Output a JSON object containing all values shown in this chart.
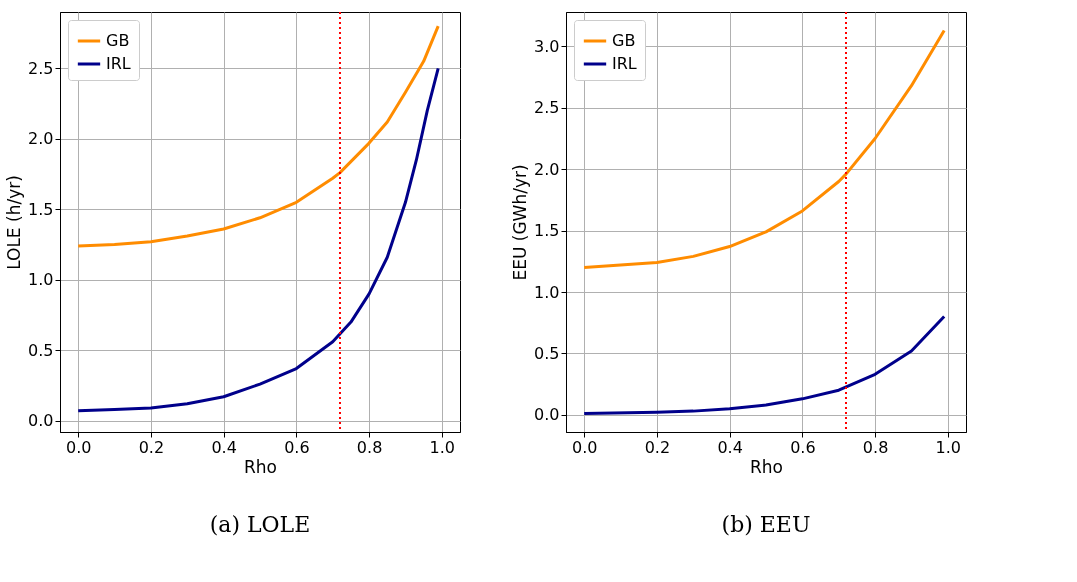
{
  "chart_data": [
    {
      "type": "line",
      "title": "(a) LOLE",
      "xlabel": "Rho",
      "ylabel": "LOLE (h/yr)",
      "xlim": [
        -0.05,
        1.05
      ],
      "ylim": [
        -0.08,
        2.9
      ],
      "xticks": [
        {
          "value": 0,
          "label": "0.0"
        },
        {
          "value": 0.2,
          "label": "0.2"
        },
        {
          "value": 0.4,
          "label": "0.4"
        },
        {
          "value": 0.6,
          "label": "0.6"
        },
        {
          "value": 0.8,
          "label": "0.8"
        },
        {
          "value": 1,
          "label": "1.0"
        }
      ],
      "yticks": [
        {
          "value": 0,
          "label": "0.0"
        },
        {
          "value": 0.5,
          "label": "0.5"
        },
        {
          "value": 1,
          "label": "1.0"
        },
        {
          "value": 1.5,
          "label": "1.5"
        },
        {
          "value": 2,
          "label": "2.0"
        },
        {
          "value": 2.5,
          "label": "2.5"
        }
      ],
      "grid": true,
      "legend": "top left",
      "marker": "none",
      "line_style": "solid",
      "ref_lines": [
        {
          "axis": "x",
          "value": 0.72,
          "color": "#ff0000",
          "line_style": "dotted"
        }
      ],
      "series": [
        {
          "name": "GB",
          "color": "#ff8c00",
          "x": [
            0,
            0.1,
            0.2,
            0.3,
            0.4,
            0.5,
            0.6,
            0.7,
            0.72,
            0.8,
            0.85,
            0.9,
            0.95,
            0.99
          ],
          "values": [
            1.24,
            1.25,
            1.27,
            1.31,
            1.36,
            1.44,
            1.55,
            1.72,
            1.76,
            1.97,
            2.12,
            2.33,
            2.55,
            2.8
          ]
        },
        {
          "name": "IRL",
          "color": "#00008b",
          "x": [
            0,
            0.1,
            0.2,
            0.3,
            0.4,
            0.5,
            0.6,
            0.7,
            0.75,
            0.8,
            0.85,
            0.9,
            0.93,
            0.96,
            0.99
          ],
          "values": [
            0.07,
            0.08,
            0.09,
            0.12,
            0.17,
            0.26,
            0.37,
            0.56,
            0.7,
            0.9,
            1.16,
            1.55,
            1.85,
            2.2,
            2.5
          ]
        }
      ]
    },
    {
      "type": "line",
      "title": "(b) EEU",
      "xlabel": "Rho",
      "ylabel": "EEU (GWh/yr)",
      "xlim": [
        -0.05,
        1.05
      ],
      "ylim": [
        -0.14,
        3.28
      ],
      "xticks": [
        {
          "value": 0,
          "label": "0.0"
        },
        {
          "value": 0.2,
          "label": "0.2"
        },
        {
          "value": 0.4,
          "label": "0.4"
        },
        {
          "value": 0.6,
          "label": "0.6"
        },
        {
          "value": 0.8,
          "label": "0.8"
        },
        {
          "value": 1,
          "label": "1.0"
        }
      ],
      "yticks": [
        {
          "value": 0,
          "label": "0.0"
        },
        {
          "value": 0.5,
          "label": "0.5"
        },
        {
          "value": 1,
          "label": "1.0"
        },
        {
          "value": 1.5,
          "label": "1.5"
        },
        {
          "value": 2,
          "label": "2.0"
        },
        {
          "value": 2.5,
          "label": "2.5"
        },
        {
          "value": 3,
          "label": "3.0"
        }
      ],
      "grid": true,
      "legend": "top left",
      "marker": "none",
      "line_style": "solid",
      "ref_lines": [
        {
          "axis": "x",
          "value": 0.72,
          "color": "#ff0000",
          "line_style": "dotted"
        }
      ],
      "series": [
        {
          "name": "GB",
          "color": "#ff8c00",
          "x": [
            0,
            0.1,
            0.2,
            0.3,
            0.4,
            0.5,
            0.6,
            0.7,
            0.72,
            0.8,
            0.9,
            0.99
          ],
          "values": [
            1.2,
            1.22,
            1.24,
            1.29,
            1.37,
            1.49,
            1.66,
            1.9,
            1.96,
            2.25,
            2.68,
            3.13
          ]
        },
        {
          "name": "IRL",
          "color": "#00008b",
          "x": [
            0,
            0.2,
            0.3,
            0.4,
            0.5,
            0.6,
            0.7,
            0.8,
            0.9,
            0.99
          ],
          "values": [
            0.01,
            0.02,
            0.03,
            0.05,
            0.08,
            0.13,
            0.2,
            0.33,
            0.52,
            0.8
          ]
        }
      ]
    }
  ]
}
